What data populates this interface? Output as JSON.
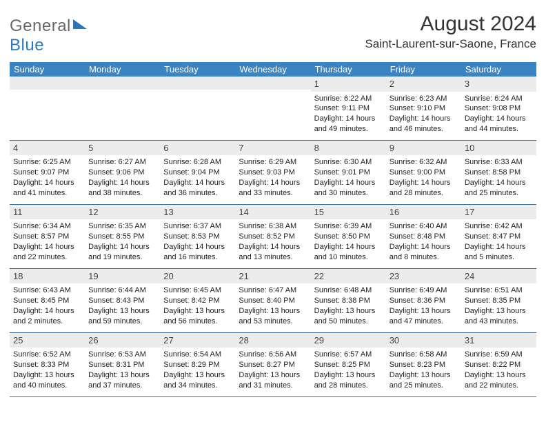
{
  "brand": {
    "part1": "General",
    "part2": "Blue"
  },
  "title": "August 2024",
  "location": "Saint-Laurent-sur-Saone, France",
  "colors": {
    "header_bg": "#3a84c4",
    "header_text": "#ffffff",
    "row_border": "#3a6d9a",
    "daynum_bg": "#ececec",
    "logo_blue": "#2f78b8",
    "logo_gray": "#696969"
  },
  "dow": [
    "Sunday",
    "Monday",
    "Tuesday",
    "Wednesday",
    "Thursday",
    "Friday",
    "Saturday"
  ],
  "weeks": [
    [
      {
        "n": "",
        "sr": "",
        "ss": "",
        "dl1": "",
        "dl2": ""
      },
      {
        "n": "",
        "sr": "",
        "ss": "",
        "dl1": "",
        "dl2": ""
      },
      {
        "n": "",
        "sr": "",
        "ss": "",
        "dl1": "",
        "dl2": ""
      },
      {
        "n": "",
        "sr": "",
        "ss": "",
        "dl1": "",
        "dl2": ""
      },
      {
        "n": "1",
        "sr": "Sunrise: 6:22 AM",
        "ss": "Sunset: 9:11 PM",
        "dl1": "Daylight: 14 hours",
        "dl2": "and 49 minutes."
      },
      {
        "n": "2",
        "sr": "Sunrise: 6:23 AM",
        "ss": "Sunset: 9:10 PM",
        "dl1": "Daylight: 14 hours",
        "dl2": "and 46 minutes."
      },
      {
        "n": "3",
        "sr": "Sunrise: 6:24 AM",
        "ss": "Sunset: 9:08 PM",
        "dl1": "Daylight: 14 hours",
        "dl2": "and 44 minutes."
      }
    ],
    [
      {
        "n": "4",
        "sr": "Sunrise: 6:25 AM",
        "ss": "Sunset: 9:07 PM",
        "dl1": "Daylight: 14 hours",
        "dl2": "and 41 minutes."
      },
      {
        "n": "5",
        "sr": "Sunrise: 6:27 AM",
        "ss": "Sunset: 9:06 PM",
        "dl1": "Daylight: 14 hours",
        "dl2": "and 38 minutes."
      },
      {
        "n": "6",
        "sr": "Sunrise: 6:28 AM",
        "ss": "Sunset: 9:04 PM",
        "dl1": "Daylight: 14 hours",
        "dl2": "and 36 minutes."
      },
      {
        "n": "7",
        "sr": "Sunrise: 6:29 AM",
        "ss": "Sunset: 9:03 PM",
        "dl1": "Daylight: 14 hours",
        "dl2": "and 33 minutes."
      },
      {
        "n": "8",
        "sr": "Sunrise: 6:30 AM",
        "ss": "Sunset: 9:01 PM",
        "dl1": "Daylight: 14 hours",
        "dl2": "and 30 minutes."
      },
      {
        "n": "9",
        "sr": "Sunrise: 6:32 AM",
        "ss": "Sunset: 9:00 PM",
        "dl1": "Daylight: 14 hours",
        "dl2": "and 28 minutes."
      },
      {
        "n": "10",
        "sr": "Sunrise: 6:33 AM",
        "ss": "Sunset: 8:58 PM",
        "dl1": "Daylight: 14 hours",
        "dl2": "and 25 minutes."
      }
    ],
    [
      {
        "n": "11",
        "sr": "Sunrise: 6:34 AM",
        "ss": "Sunset: 8:57 PM",
        "dl1": "Daylight: 14 hours",
        "dl2": "and 22 minutes."
      },
      {
        "n": "12",
        "sr": "Sunrise: 6:35 AM",
        "ss": "Sunset: 8:55 PM",
        "dl1": "Daylight: 14 hours",
        "dl2": "and 19 minutes."
      },
      {
        "n": "13",
        "sr": "Sunrise: 6:37 AM",
        "ss": "Sunset: 8:53 PM",
        "dl1": "Daylight: 14 hours",
        "dl2": "and 16 minutes."
      },
      {
        "n": "14",
        "sr": "Sunrise: 6:38 AM",
        "ss": "Sunset: 8:52 PM",
        "dl1": "Daylight: 14 hours",
        "dl2": "and 13 minutes."
      },
      {
        "n": "15",
        "sr": "Sunrise: 6:39 AM",
        "ss": "Sunset: 8:50 PM",
        "dl1": "Daylight: 14 hours",
        "dl2": "and 10 minutes."
      },
      {
        "n": "16",
        "sr": "Sunrise: 6:40 AM",
        "ss": "Sunset: 8:48 PM",
        "dl1": "Daylight: 14 hours",
        "dl2": "and 8 minutes."
      },
      {
        "n": "17",
        "sr": "Sunrise: 6:42 AM",
        "ss": "Sunset: 8:47 PM",
        "dl1": "Daylight: 14 hours",
        "dl2": "and 5 minutes."
      }
    ],
    [
      {
        "n": "18",
        "sr": "Sunrise: 6:43 AM",
        "ss": "Sunset: 8:45 PM",
        "dl1": "Daylight: 14 hours",
        "dl2": "and 2 minutes."
      },
      {
        "n": "19",
        "sr": "Sunrise: 6:44 AM",
        "ss": "Sunset: 8:43 PM",
        "dl1": "Daylight: 13 hours",
        "dl2": "and 59 minutes."
      },
      {
        "n": "20",
        "sr": "Sunrise: 6:45 AM",
        "ss": "Sunset: 8:42 PM",
        "dl1": "Daylight: 13 hours",
        "dl2": "and 56 minutes."
      },
      {
        "n": "21",
        "sr": "Sunrise: 6:47 AM",
        "ss": "Sunset: 8:40 PM",
        "dl1": "Daylight: 13 hours",
        "dl2": "and 53 minutes."
      },
      {
        "n": "22",
        "sr": "Sunrise: 6:48 AM",
        "ss": "Sunset: 8:38 PM",
        "dl1": "Daylight: 13 hours",
        "dl2": "and 50 minutes."
      },
      {
        "n": "23",
        "sr": "Sunrise: 6:49 AM",
        "ss": "Sunset: 8:36 PM",
        "dl1": "Daylight: 13 hours",
        "dl2": "and 47 minutes."
      },
      {
        "n": "24",
        "sr": "Sunrise: 6:51 AM",
        "ss": "Sunset: 8:35 PM",
        "dl1": "Daylight: 13 hours",
        "dl2": "and 43 minutes."
      }
    ],
    [
      {
        "n": "25",
        "sr": "Sunrise: 6:52 AM",
        "ss": "Sunset: 8:33 PM",
        "dl1": "Daylight: 13 hours",
        "dl2": "and 40 minutes."
      },
      {
        "n": "26",
        "sr": "Sunrise: 6:53 AM",
        "ss": "Sunset: 8:31 PM",
        "dl1": "Daylight: 13 hours",
        "dl2": "and 37 minutes."
      },
      {
        "n": "27",
        "sr": "Sunrise: 6:54 AM",
        "ss": "Sunset: 8:29 PM",
        "dl1": "Daylight: 13 hours",
        "dl2": "and 34 minutes."
      },
      {
        "n": "28",
        "sr": "Sunrise: 6:56 AM",
        "ss": "Sunset: 8:27 PM",
        "dl1": "Daylight: 13 hours",
        "dl2": "and 31 minutes."
      },
      {
        "n": "29",
        "sr": "Sunrise: 6:57 AM",
        "ss": "Sunset: 8:25 PM",
        "dl1": "Daylight: 13 hours",
        "dl2": "and 28 minutes."
      },
      {
        "n": "30",
        "sr": "Sunrise: 6:58 AM",
        "ss": "Sunset: 8:23 PM",
        "dl1": "Daylight: 13 hours",
        "dl2": "and 25 minutes."
      },
      {
        "n": "31",
        "sr": "Sunrise: 6:59 AM",
        "ss": "Sunset: 8:22 PM",
        "dl1": "Daylight: 13 hours",
        "dl2": "and 22 minutes."
      }
    ]
  ]
}
